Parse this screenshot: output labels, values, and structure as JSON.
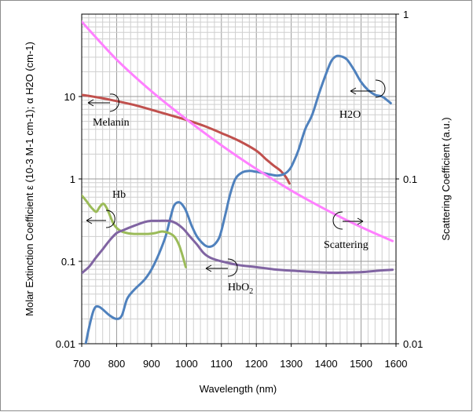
{
  "chart_data": {
    "type": "line",
    "xlabel": "Wavelength (nm)",
    "ylabel_left": "Molar Extinction Coefficient ε (10-3 M-1 cm-1); α H2O (cm-1)",
    "ylabel_right": "Scattering Coefficient (a.u.)",
    "xlim": [
      700,
      1600
    ],
    "ylim_left": [
      0.01,
      100
    ],
    "ylim_right": [
      0.01,
      1
    ],
    "y_scale": "log",
    "grid": true,
    "x_ticks": [
      "700",
      "800",
      "900",
      "1000",
      "1100",
      "1200",
      "1300",
      "1400",
      "1500",
      "1600"
    ],
    "y_left_ticks": [
      "0.01",
      "0.1",
      "1",
      "10"
    ],
    "y_right_ticks": [
      "0.01",
      "0.1",
      "1"
    ],
    "series": [
      {
        "name": "Melanin",
        "axis": "left",
        "color": "#c0504d",
        "x": [
          700,
          750,
          800,
          850,
          900,
          950,
          1000,
          1050,
          1100,
          1150,
          1200,
          1230,
          1250,
          1270,
          1285,
          1295
        ],
        "y": [
          10.5,
          9.7,
          8.8,
          7.9,
          6.9,
          6.0,
          5.2,
          4.4,
          3.6,
          2.9,
          2.2,
          1.7,
          1.45,
          1.25,
          1.05,
          0.88
        ]
      },
      {
        "name": "H2O",
        "axis": "left",
        "color": "#4f81bd",
        "x": [
          700,
          710,
          720,
          735,
          750,
          780,
          800,
          815,
          830,
          850,
          880,
          900,
          920,
          940,
          955,
          965,
          980,
          995,
          1005,
          1015,
          1030,
          1050,
          1065,
          1080,
          1095,
          1110,
          1125,
          1140,
          1160,
          1180,
          1200,
          1220,
          1240,
          1260,
          1280,
          1295,
          1305,
          1320,
          1340,
          1360,
          1380,
          1400,
          1415,
          1430,
          1445,
          1460,
          1480,
          1500,
          1520,
          1540,
          1560,
          1575,
          1585
        ],
        "y": [
          0.0085,
          0.0095,
          0.015,
          0.026,
          0.028,
          0.022,
          0.02,
          0.022,
          0.035,
          0.045,
          0.06,
          0.08,
          0.12,
          0.2,
          0.35,
          0.48,
          0.52,
          0.44,
          0.35,
          0.27,
          0.2,
          0.16,
          0.15,
          0.16,
          0.2,
          0.35,
          0.65,
          1.0,
          1.2,
          1.25,
          1.22,
          1.18,
          1.13,
          1.1,
          1.15,
          1.3,
          1.55,
          2.2,
          4.0,
          6.0,
          11.0,
          19.0,
          27.0,
          31.0,
          30.5,
          28.0,
          21.0,
          15.0,
          12.0,
          10.5,
          10.0,
          9.0,
          8.3
        ]
      },
      {
        "name": "Hb",
        "axis": "left",
        "color": "#9bbb59",
        "x": [
          700,
          712,
          722,
          732,
          742,
          752,
          762,
          772,
          782,
          792,
          802,
          815,
          830,
          850,
          870,
          890,
          910,
          930,
          950,
          965,
          978,
          988,
          998
        ],
        "y": [
          0.63,
          0.55,
          0.48,
          0.43,
          0.4,
          0.46,
          0.5,
          0.44,
          0.35,
          0.28,
          0.25,
          0.23,
          0.22,
          0.215,
          0.215,
          0.215,
          0.22,
          0.23,
          0.22,
          0.2,
          0.16,
          0.12,
          0.085
        ]
      },
      {
        "name": "HbO2",
        "axis": "left",
        "color": "#8064a2",
        "x": [
          700,
          720,
          740,
          760,
          780,
          800,
          820,
          850,
          880,
          900,
          920,
          950,
          970,
          990,
          1010,
          1030,
          1050,
          1070,
          1100,
          1150,
          1200,
          1250,
          1300,
          1350,
          1400,
          1450,
          1500,
          1550,
          1590
        ],
        "y": [
          0.072,
          0.085,
          0.11,
          0.14,
          0.18,
          0.22,
          0.24,
          0.27,
          0.3,
          0.31,
          0.31,
          0.31,
          0.29,
          0.25,
          0.2,
          0.16,
          0.125,
          0.11,
          0.1,
          0.09,
          0.085,
          0.08,
          0.077,
          0.075,
          0.073,
          0.073,
          0.074,
          0.077,
          0.079
        ]
      },
      {
        "name": "Scattering",
        "axis": "right",
        "color": "#ff80ff",
        "x": [
          700,
          800,
          900,
          1000,
          1100,
          1200,
          1300,
          1400,
          1500,
          1590
        ],
        "y": [
          0.9,
          0.53,
          0.34,
          0.23,
          0.16,
          0.115,
          0.085,
          0.065,
          0.051,
          0.042
        ]
      }
    ],
    "annotations": [
      {
        "text": "Melanin",
        "points_to": "left"
      },
      {
        "text": "H2O",
        "points_to": "left"
      },
      {
        "text": "Hb",
        "points_to": "left"
      },
      {
        "text": "HbO2",
        "points_to": "left"
      },
      {
        "text": "Scattering",
        "points_to": "right"
      }
    ]
  }
}
